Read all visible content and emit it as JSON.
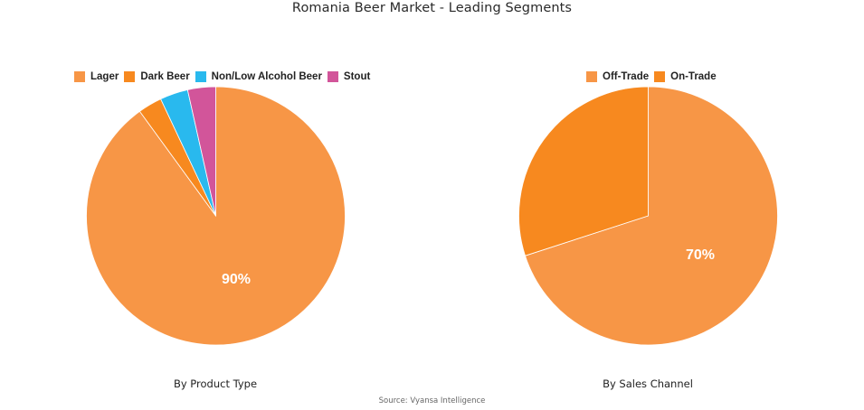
{
  "title": "Romania Beer Market - Leading Segments",
  "source": "Source: Vyansa Intelligence",
  "colors": {
    "lager": "#F79646",
    "dark_beer": "#F7891F",
    "non_low_alcohol": "#29B9EE",
    "stout": "#D2559A",
    "off_trade": "#F79646",
    "on_trade": "#F7891F"
  },
  "left_chart": {
    "subtitle": "By Product Type",
    "legend": [
      "Lager",
      "Dark Beer",
      "Non/Low Alcohol Beer",
      "Stout"
    ],
    "label": "90%"
  },
  "right_chart": {
    "subtitle": "By Sales Channel",
    "legend": [
      "Off-Trade",
      "On-Trade"
    ],
    "label": "70%"
  },
  "chart_data": [
    {
      "type": "pie",
      "title": "By Product Type",
      "categories": [
        "Lager",
        "Dark Beer",
        "Non/Low Alcohol Beer",
        "Stout"
      ],
      "values": [
        90,
        3,
        3.5,
        3.5
      ],
      "data_labels": [
        "90%",
        "",
        "",
        ""
      ],
      "colors": [
        "#F79646",
        "#F7891F",
        "#29B9EE",
        "#D2559A"
      ],
      "legend_position": "top",
      "start_angle": 0,
      "direction": "clockwise"
    },
    {
      "type": "pie",
      "title": "By Sales Channel",
      "categories": [
        "Off-Trade",
        "On-Trade"
      ],
      "values": [
        70,
        30
      ],
      "data_labels": [
        "70%",
        ""
      ],
      "colors": [
        "#F79646",
        "#F7891F"
      ],
      "legend_position": "top",
      "start_angle": 0,
      "direction": "clockwise"
    }
  ]
}
